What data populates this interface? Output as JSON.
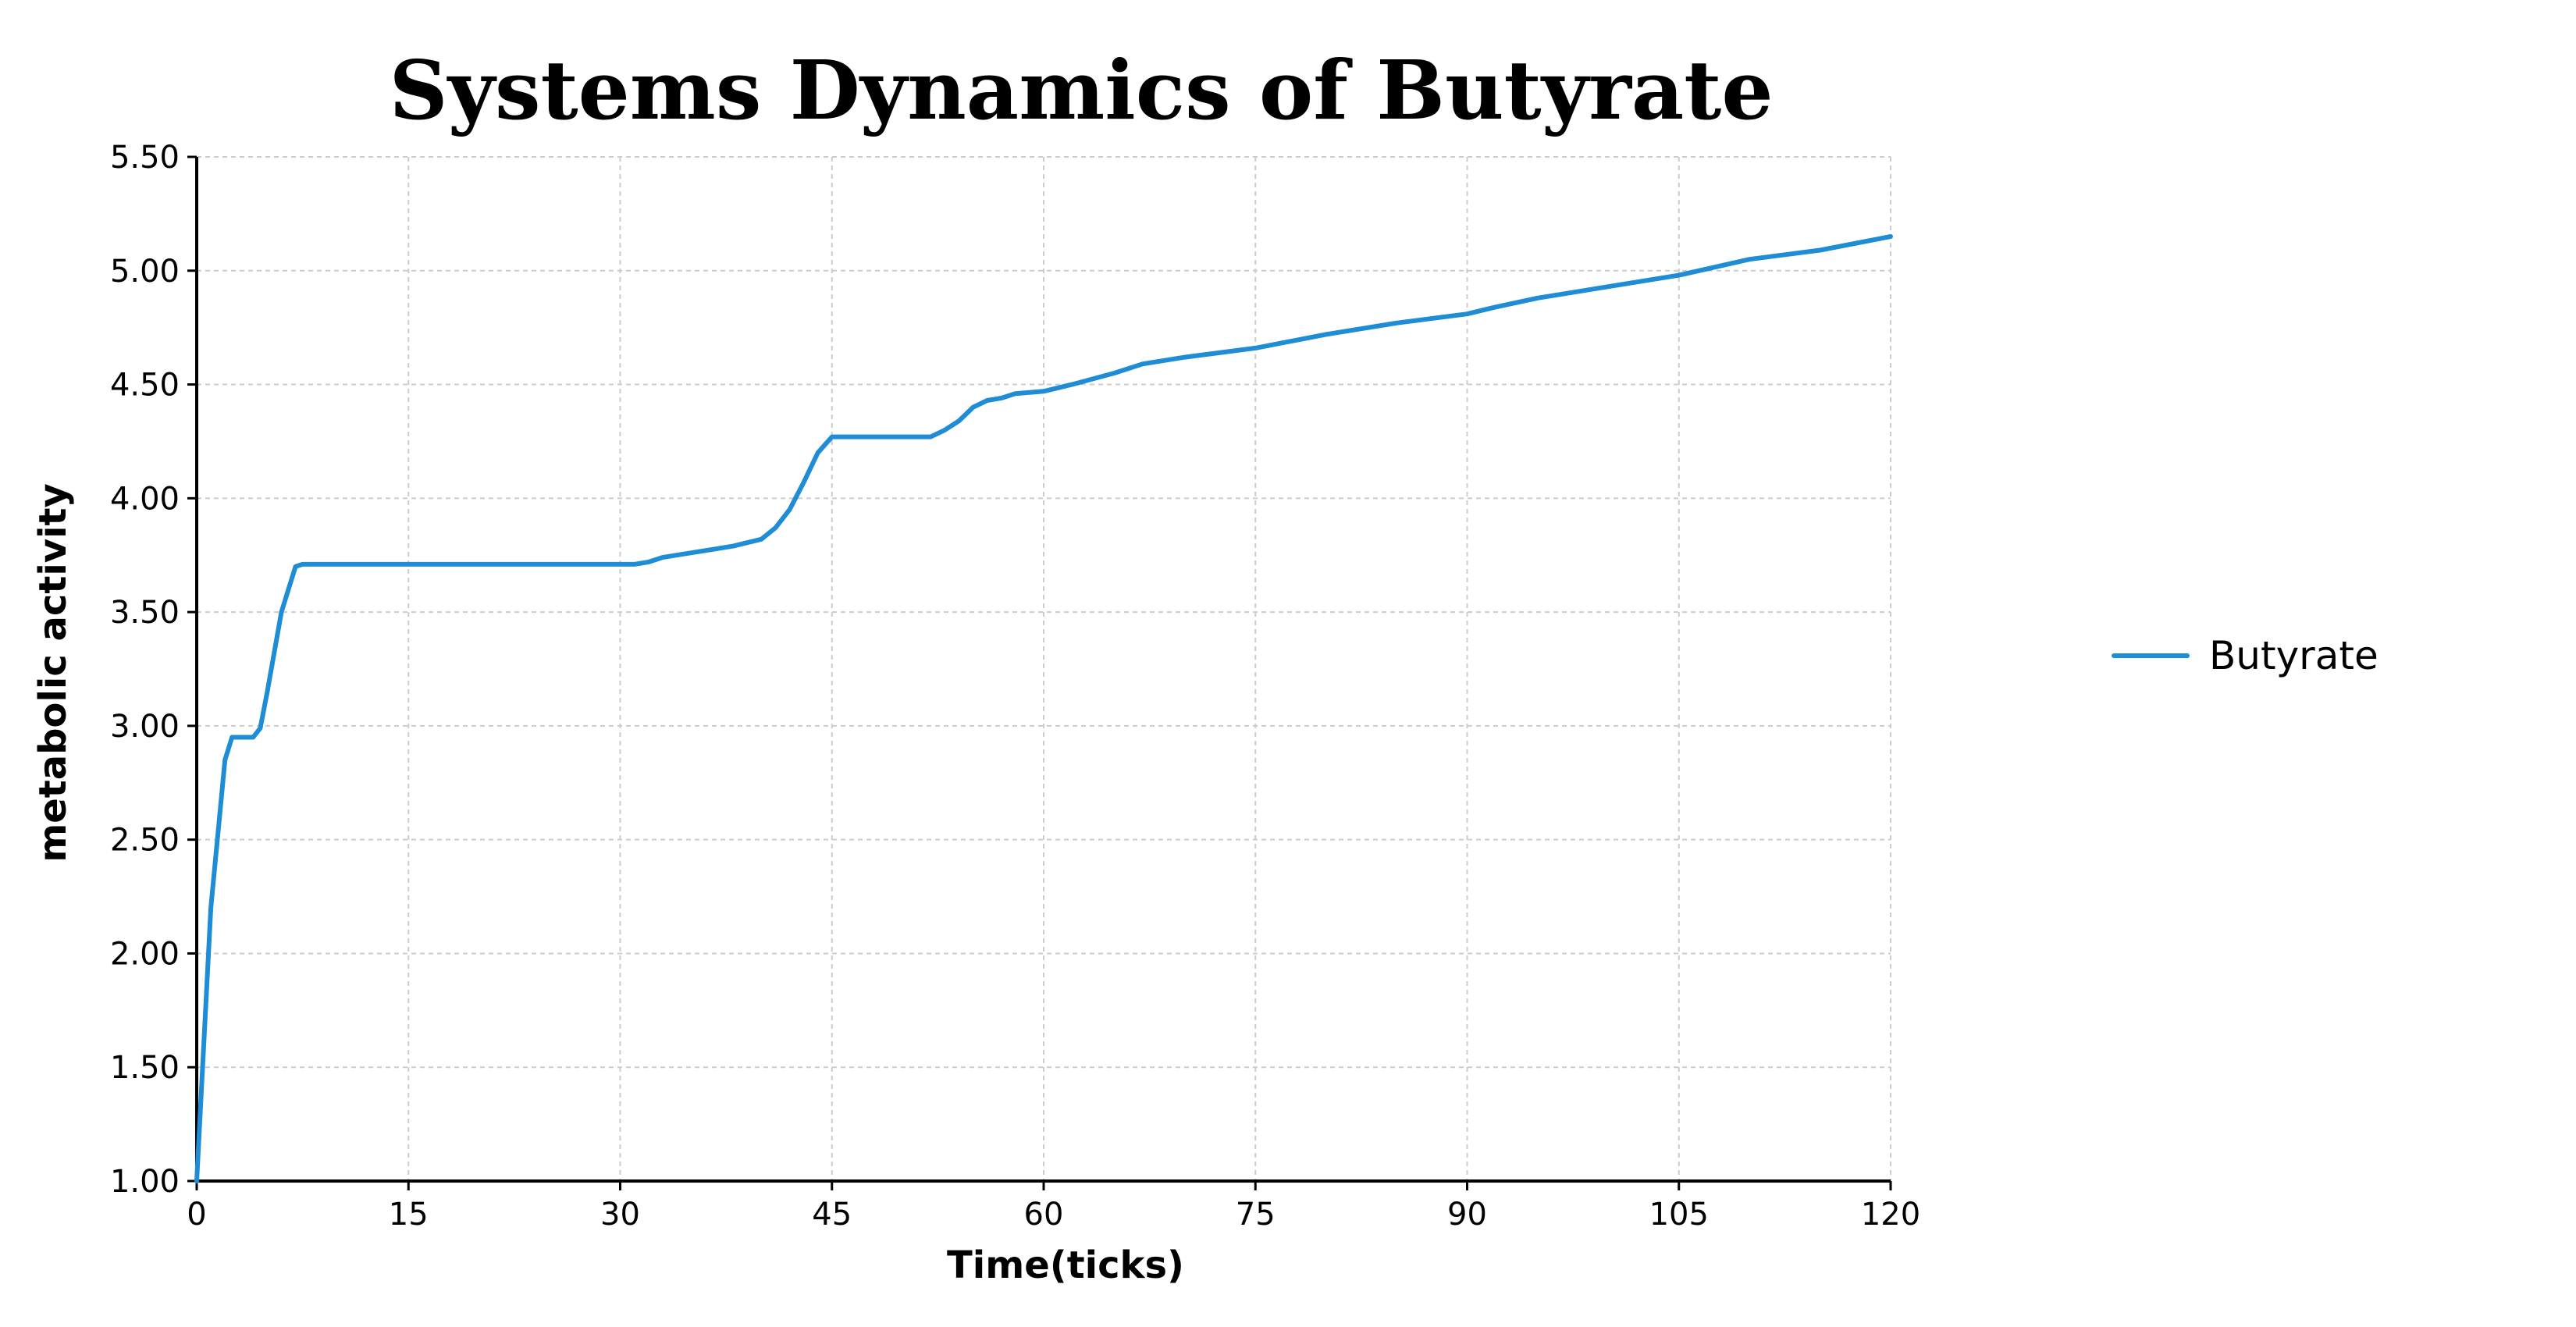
{
  "chart_data": {
    "type": "line",
    "title": "Systems Dynamics of Butyrate",
    "xlabel": "Time(ticks)",
    "ylabel": "metabolic activity",
    "xlim": [
      0,
      120
    ],
    "ylim": [
      1.0,
      5.5
    ],
    "x_ticks": [
      "0",
      "15",
      "30",
      "45",
      "60",
      "75",
      "90",
      "105",
      "120"
    ],
    "y_ticks": [
      "1.00",
      "1.50",
      "2.00",
      "2.50",
      "3.00",
      "3.50",
      "4.00",
      "4.50",
      "5.00",
      "5.50"
    ],
    "grid": true,
    "legend_position": "right",
    "series": [
      {
        "name": "Butyrate",
        "color": "#1f8dd6",
        "x": [
          0,
          1,
          2,
          2.5,
          3,
          3.5,
          4,
          4.5,
          5,
          6,
          7,
          7.5,
          10,
          20,
          30,
          31,
          32,
          33,
          34,
          36,
          38,
          40,
          41,
          42,
          43,
          44,
          45,
          46,
          50,
          52,
          53,
          54,
          55,
          56,
          57,
          58,
          60,
          62,
          65,
          67,
          70,
          75,
          80,
          85,
          90,
          92,
          95,
          100,
          105,
          110,
          115,
          120
        ],
        "values": [
          1.0,
          2.2,
          2.85,
          2.95,
          2.95,
          2.95,
          2.95,
          2.99,
          3.15,
          3.5,
          3.7,
          3.71,
          3.71,
          3.71,
          3.71,
          3.71,
          3.72,
          3.74,
          3.75,
          3.77,
          3.79,
          3.82,
          3.87,
          3.95,
          4.07,
          4.2,
          4.27,
          4.27,
          4.27,
          4.27,
          4.3,
          4.34,
          4.4,
          4.43,
          4.44,
          4.46,
          4.47,
          4.5,
          4.55,
          4.59,
          4.62,
          4.66,
          4.72,
          4.77,
          4.81,
          4.84,
          4.88,
          4.93,
          4.98,
          5.05,
          5.09,
          5.15
        ]
      }
    ]
  }
}
